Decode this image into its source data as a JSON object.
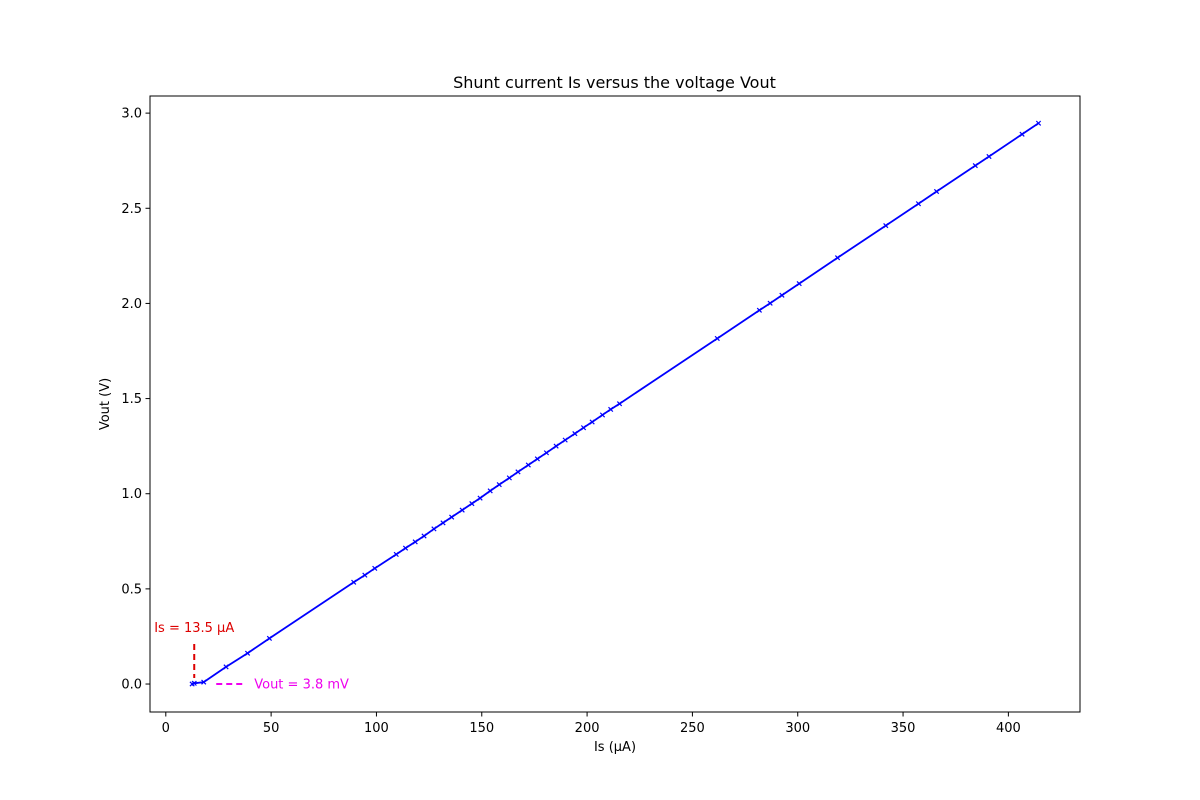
{
  "chart_data": {
    "type": "line",
    "title": "Shunt current Is versus the voltage Vout",
    "xlabel": "Is (μA)",
    "ylabel": "Vout (V)",
    "xlim": [
      -7.5,
      434
    ],
    "ylim": [
      -0.147,
      3.09
    ],
    "xticks": [
      0,
      50,
      100,
      150,
      200,
      250,
      300,
      350,
      400
    ],
    "yticks": [
      0.0,
      0.5,
      1.0,
      1.5,
      2.0,
      2.5,
      3.0
    ],
    "xtick_labels": [
      "0",
      "50",
      "100",
      "150",
      "200",
      "250",
      "300",
      "350",
      "400"
    ],
    "ytick_labels": [
      "0.0",
      "0.5",
      "1.0",
      "1.5",
      "2.0",
      "2.5",
      "3.0"
    ],
    "grid": false,
    "series": [
      {
        "color": "#0000ff",
        "marker": "x",
        "x": [
          12.5,
          13.5,
          18,
          28.6,
          38.8,
          49.2,
          89.2,
          94.5,
          99.2,
          109.4,
          113.8,
          118.4,
          122.6,
          127.3,
          131.6,
          135.7,
          140.7,
          145.3,
          149.2,
          154,
          158.3,
          163.1,
          167.2,
          172.1,
          176.4,
          180.7,
          185.3,
          189.6,
          194.2,
          198.3,
          202.4,
          207.3,
          211.2,
          215.4,
          261.8,
          281.8,
          286.9,
          292.5,
          300.7,
          318.9,
          341.8,
          357.3,
          365.9,
          384.3,
          390.8,
          406.5,
          414.3
        ],
        "y": [
          0.0,
          0.0038,
          0.01,
          0.09,
          0.162,
          0.24,
          0.535,
          0.572,
          0.608,
          0.681,
          0.714,
          0.747,
          0.778,
          0.815,
          0.847,
          0.877,
          0.914,
          0.948,
          0.977,
          1.015,
          1.048,
          1.083,
          1.115,
          1.151,
          1.183,
          1.215,
          1.25,
          1.282,
          1.316,
          1.347,
          1.377,
          1.414,
          1.443,
          1.473,
          1.816,
          1.964,
          2.001,
          2.043,
          2.104,
          2.24,
          2.409,
          2.524,
          2.588,
          2.724,
          2.772,
          2.889,
          2.947
        ]
      }
    ],
    "annotations": [
      {
        "text": "Is = 13.5 μA",
        "color": "#dd0000",
        "x": 13.5,
        "y": 0.0
      },
      {
        "text": "Vout = 3.8 mV",
        "color": "#ee00ee",
        "x": 13.5,
        "y": 0.0038
      }
    ]
  }
}
